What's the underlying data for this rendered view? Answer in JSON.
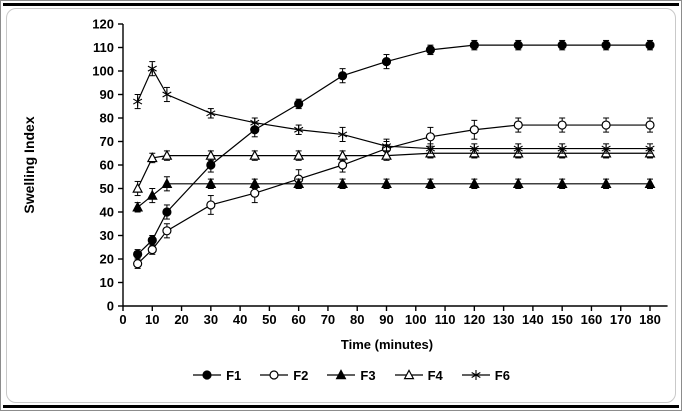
{
  "page": {
    "background": "#ffffff",
    "frame_color": "#000000",
    "plot_color": "#000000"
  },
  "chart_data": {
    "type": "line",
    "title": "",
    "xlabel": "Time (minutes)",
    "ylabel": "Swelling Index",
    "xlim": [
      0,
      186
    ],
    "ylim": [
      0,
      120
    ],
    "x_ticks": [
      0,
      10,
      20,
      30,
      40,
      50,
      60,
      70,
      80,
      90,
      100,
      110,
      120,
      130,
      140,
      150,
      160,
      170,
      180
    ],
    "y_ticks": [
      0,
      10,
      20,
      30,
      40,
      50,
      60,
      70,
      80,
      90,
      100,
      110,
      120
    ],
    "grid": false,
    "legend_position": "bottom",
    "error_bars": true,
    "x": [
      5,
      10,
      15,
      30,
      45,
      60,
      75,
      90,
      105,
      120,
      135,
      150,
      165,
      180
    ],
    "series": [
      {
        "name": "F1",
        "marker": "filled-circle",
        "values": [
          22,
          28,
          40,
          60,
          75,
          86,
          98,
          104,
          109,
          111,
          111,
          111,
          111,
          111
        ],
        "errors": [
          2,
          2,
          3,
          3,
          3,
          2,
          3,
          3,
          2,
          2,
          2,
          2,
          2,
          2
        ]
      },
      {
        "name": "F2",
        "marker": "open-circle",
        "values": [
          18,
          24,
          32,
          43,
          48,
          54,
          60,
          67,
          72,
          75,
          77,
          77,
          77,
          77
        ],
        "errors": [
          2,
          2,
          3,
          4,
          4,
          4,
          3,
          4,
          4,
          4,
          3,
          3,
          3,
          3
        ]
      },
      {
        "name": "F3",
        "marker": "filled-triangle",
        "values": [
          42,
          47,
          52,
          52,
          52,
          52,
          52,
          52,
          52,
          52,
          52,
          52,
          52,
          52
        ],
        "errors": [
          2,
          3,
          3,
          2,
          2,
          2,
          2,
          2,
          2,
          2,
          2,
          2,
          2,
          2
        ]
      },
      {
        "name": "F4",
        "marker": "open-triangle",
        "values": [
          50,
          63,
          64,
          64,
          64,
          64,
          64,
          64,
          65,
          65,
          65,
          65,
          65,
          65
        ],
        "errors": [
          3,
          2,
          2,
          2,
          2,
          2,
          2,
          2,
          2,
          2,
          2,
          2,
          2,
          2
        ]
      },
      {
        "name": "F6",
        "marker": "asterisk",
        "values": [
          87,
          101,
          90,
          82,
          78,
          75,
          73,
          68,
          67,
          67,
          67,
          67,
          67,
          67
        ],
        "errors": [
          3,
          3,
          3,
          2,
          2,
          2,
          3,
          2,
          2,
          2,
          2,
          2,
          2,
          2
        ]
      }
    ]
  }
}
